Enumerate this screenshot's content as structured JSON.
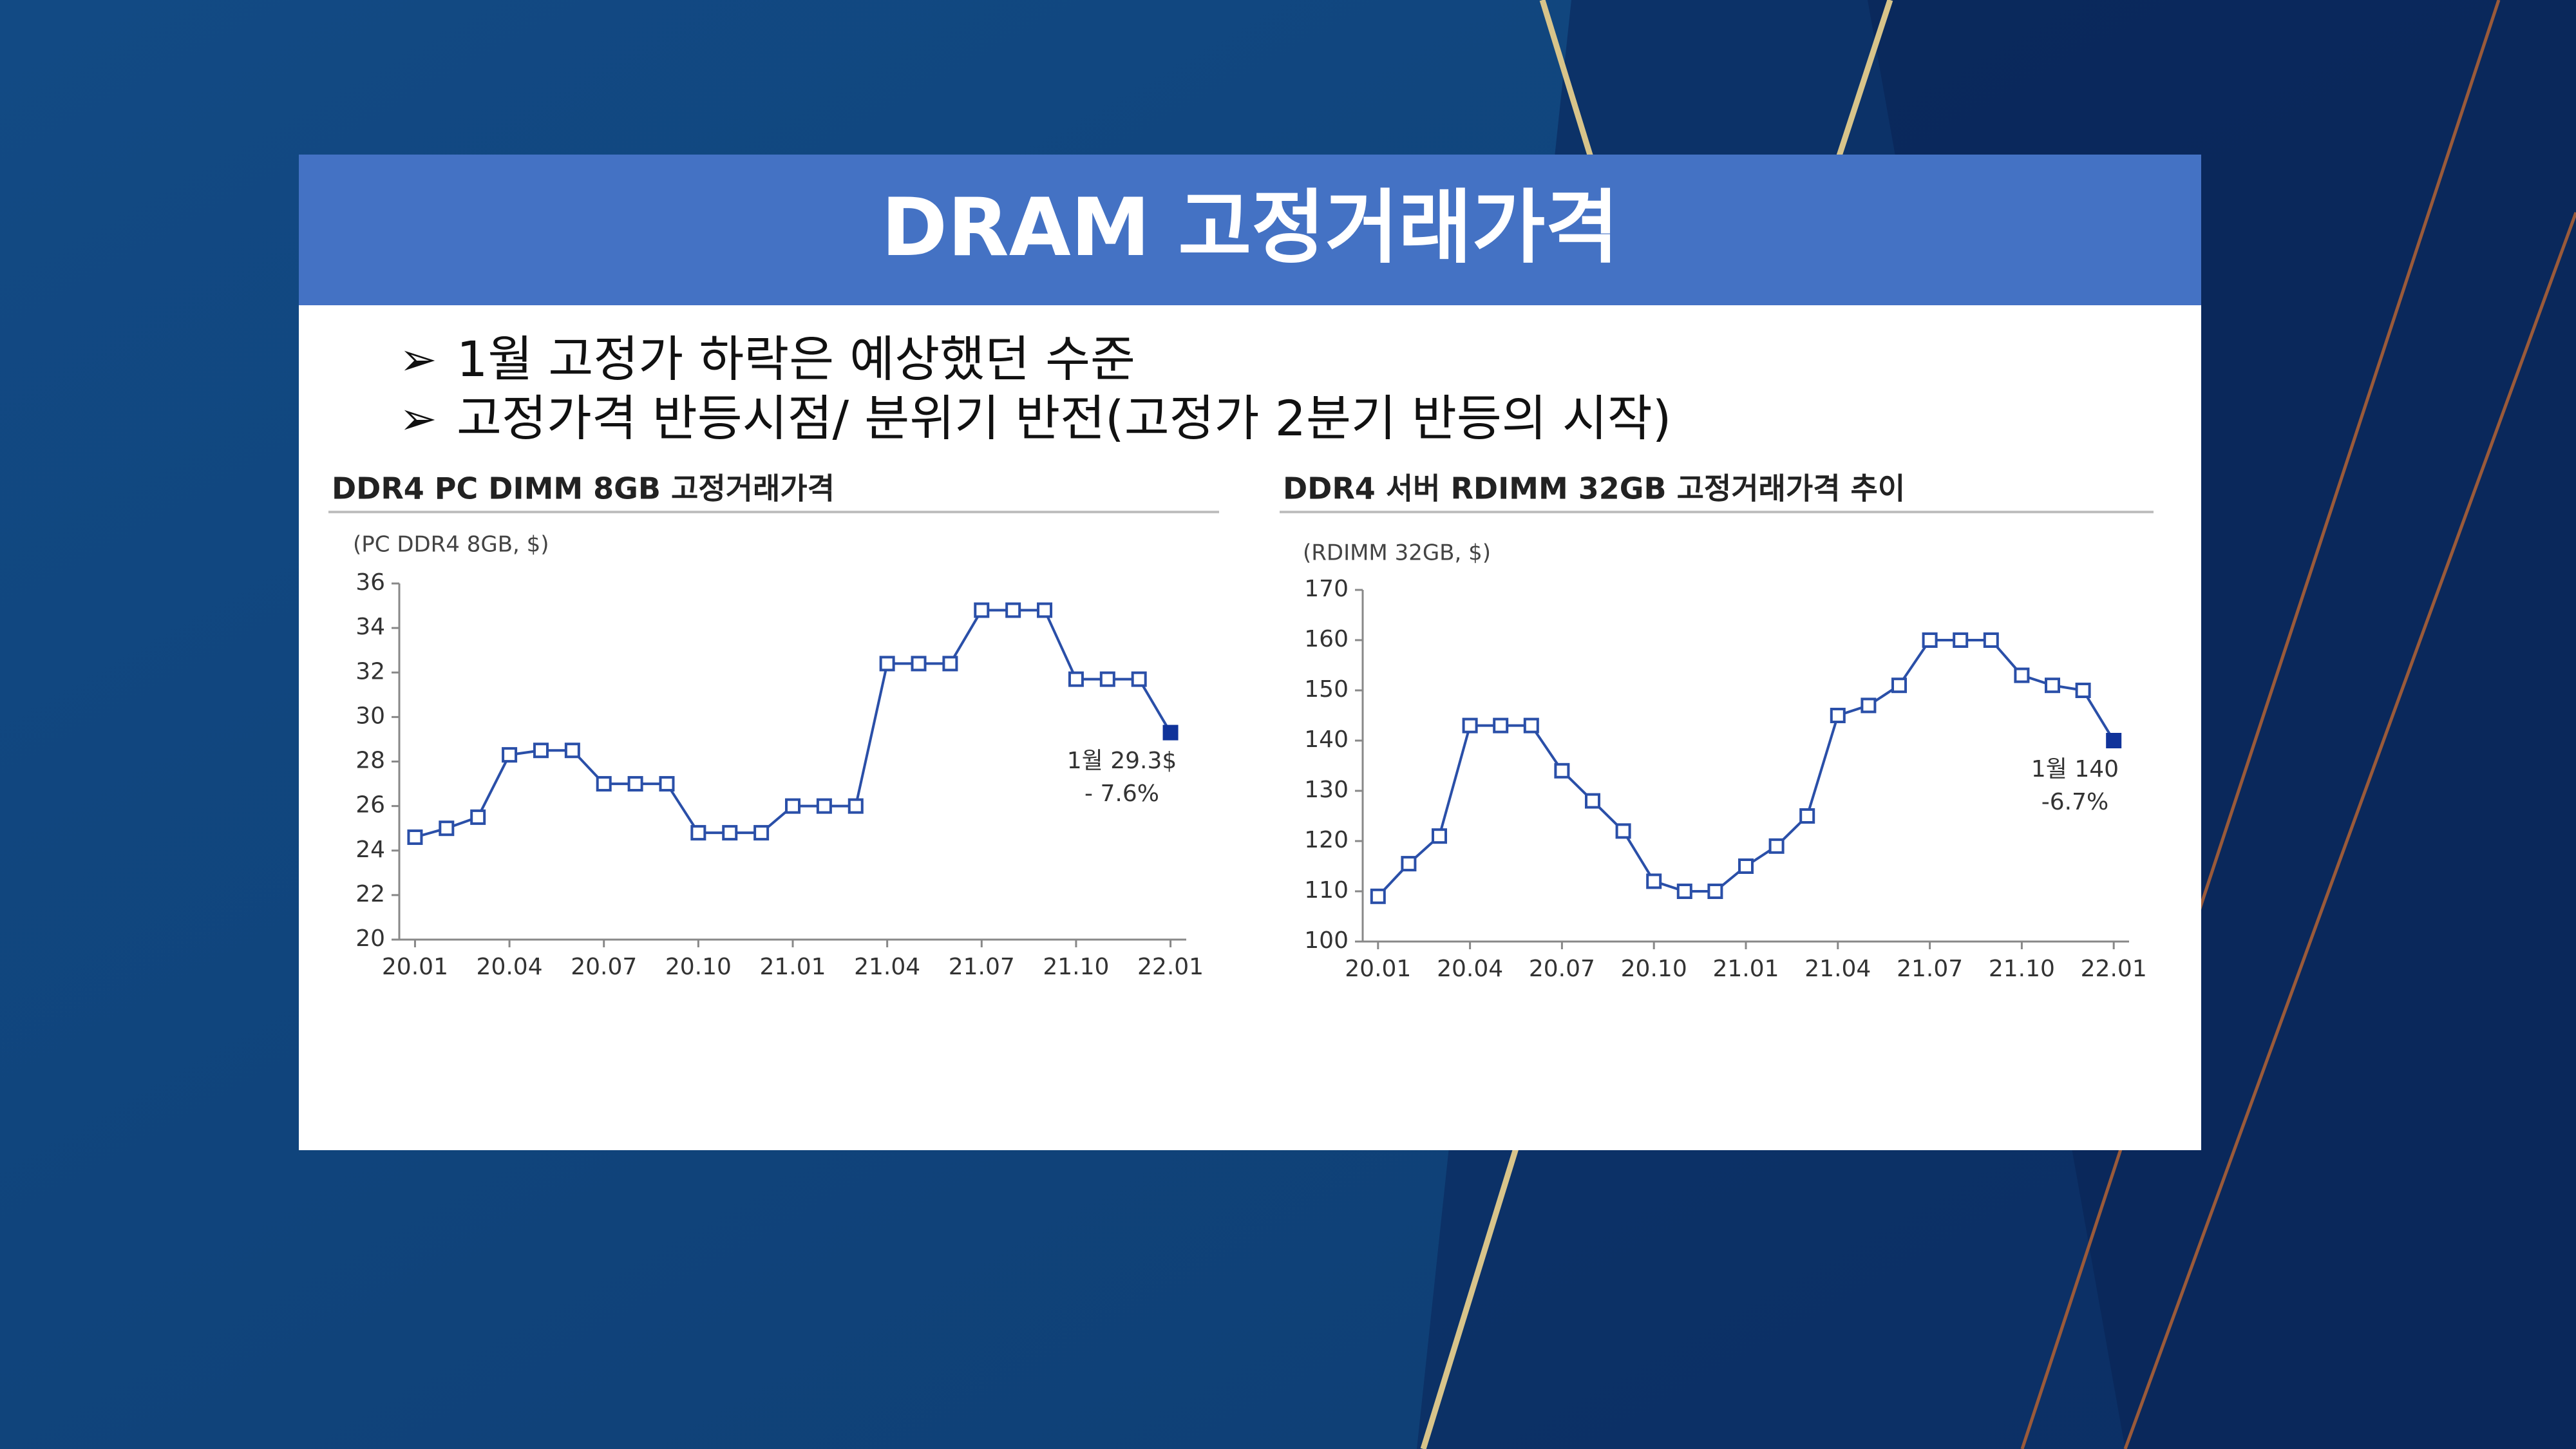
{
  "header": {
    "title": "DRAM 고정거래가격"
  },
  "bullets": [
    "1월 고정가 하락은 예상했던 수준",
    "고정가격 반등시점/ 분위기 반전(고정가 2분기 반등의 시작)"
  ],
  "chart_data": [
    {
      "type": "line",
      "title": "DDR4 PC DIMM 8GB 고정거래가격",
      "y_label": "(PC DDR4 8GB, $)",
      "categories": [
        "20.01",
        null,
        null,
        "20.04",
        null,
        null,
        "20.07",
        null,
        null,
        "20.10",
        null,
        null,
        "21.01",
        null,
        null,
        "21.04",
        null,
        null,
        "21.07",
        null,
        null,
        "21.10",
        null,
        null,
        "22.01"
      ],
      "values": [
        24.6,
        25.0,
        25.5,
        28.3,
        28.5,
        28.5,
        27.0,
        27.0,
        27.0,
        24.8,
        24.8,
        24.8,
        26.0,
        26.0,
        26.0,
        32.4,
        32.4,
        32.4,
        34.8,
        34.8,
        34.8,
        31.7,
        31.7,
        31.7,
        29.3
      ],
      "color": "#2a4fa8",
      "marker_fill": "#ffffff",
      "last_point_color": "#10339a",
      "ylim": [
        20,
        36
      ],
      "yticks": [
        20,
        22,
        24,
        26,
        28,
        30,
        32,
        34,
        36
      ],
      "annotations": [
        "1월 29.3$",
        "- 7.6%"
      ]
    },
    {
      "type": "line",
      "title": "DDR4 서버 RDIMM 32GB 고정거래가격 추이",
      "y_label": "(RDIMM 32GB, $)",
      "categories": [
        "20.01",
        null,
        null,
        "20.04",
        null,
        null,
        "20.07",
        null,
        null,
        "20.10",
        null,
        null,
        "21.01",
        null,
        null,
        "21.04",
        null,
        null,
        "21.07",
        null,
        null,
        "21.10",
        null,
        null,
        "22.01"
      ],
      "values": [
        109,
        115.5,
        121,
        143,
        143,
        143,
        134,
        128,
        122,
        112,
        110,
        110,
        115,
        119,
        125,
        145,
        147,
        151,
        160,
        160,
        160,
        153,
        151,
        150,
        140
      ],
      "color": "#2a4fa8",
      "marker_fill": "#ffffff",
      "last_point_color": "#10339a",
      "ylim": [
        100,
        170
      ],
      "yticks": [
        100,
        110,
        120,
        130,
        140,
        150,
        160,
        170
      ],
      "annotations": [
        "1월 140",
        "-6.7%"
      ]
    }
  ]
}
